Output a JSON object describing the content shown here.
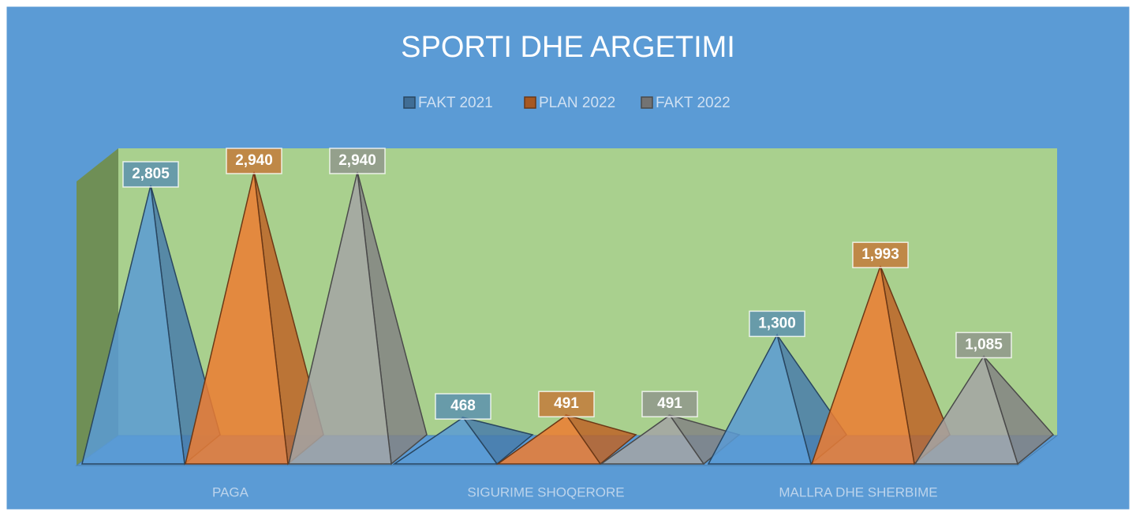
{
  "chart_data": {
    "type": "pyramid",
    "title": "SPORTI DHE ARGETIMI",
    "categories": [
      "PAGA",
      "SIGURIME SHOQERORE",
      "MALLRA DHE SHERBIME"
    ],
    "series": [
      {
        "name": "FAKT 2021",
        "color": "#5b9bd5",
        "values": [
          2805,
          468,
          1300
        ],
        "value_labels": [
          "2,805",
          "468",
          "1,300"
        ]
      },
      {
        "name": "PLAN 2022",
        "color": "#ed7d31",
        "values": [
          2940,
          491,
          1993
        ],
        "value_labels": [
          "2,940",
          "491",
          "1,993"
        ]
      },
      {
        "name": "FAKT 2022",
        "color": "#a5a5a5",
        "values": [
          2940,
          491,
          1085
        ],
        "value_labels": [
          "2,940",
          "491",
          "1,085"
        ]
      }
    ],
    "legend": "top"
  }
}
